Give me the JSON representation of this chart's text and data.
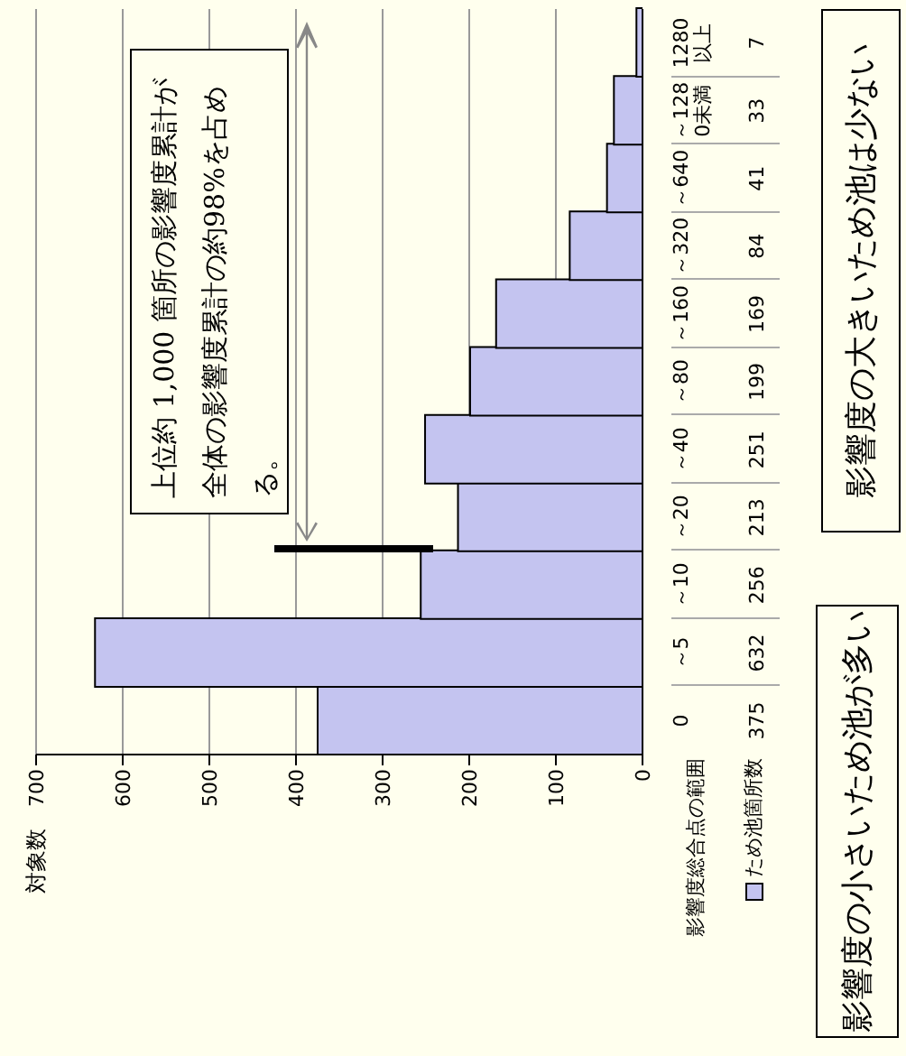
{
  "chart_data": {
    "type": "bar",
    "orientation": "horizontal",
    "ylabel": "影響度総合点の範囲",
    "categories": [
      "1280以上",
      "～1280未満",
      "～640",
      "～320",
      "～160",
      "～80",
      "～40",
      "～20",
      "～10",
      "～5",
      "0"
    ],
    "series": [
      {
        "name": "ため池箇所数",
        "color": "#c4c4f0",
        "values": [
          7,
          33,
          41,
          84,
          169,
          199,
          251,
          213,
          256,
          632,
          375
        ]
      }
    ],
    "xlim": [
      700,
      0
    ],
    "xticks": [
      700,
      600,
      500,
      400,
      300,
      200,
      100,
      0
    ],
    "grid": "x",
    "legend": "bottom right",
    "data_labels": true,
    "annotations": [
      "上位約 1,000 箇所の影響度累計が全体の影響度累計の約98%を占める。",
      "影響度の小さいため池が多い",
      "影響度の大きいため池は少ない",
      "対象数"
    ]
  }
}
